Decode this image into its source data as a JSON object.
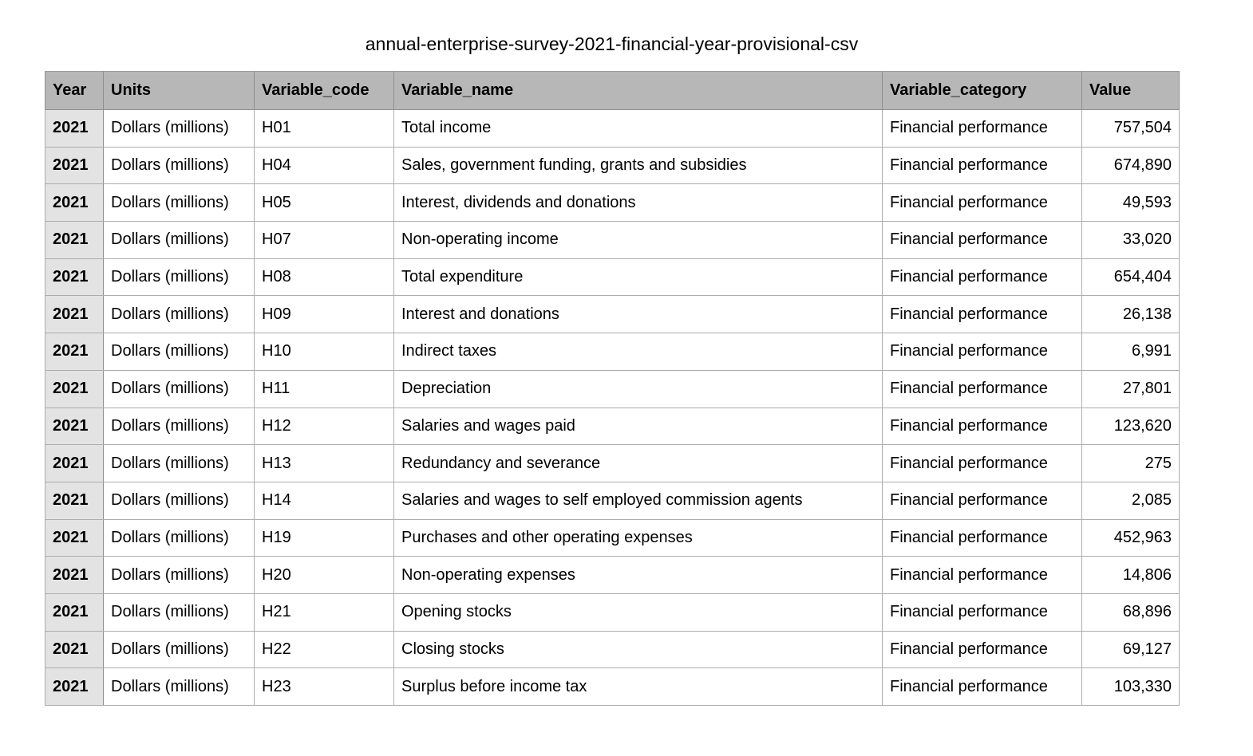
{
  "title": "annual-enterprise-survey-2021-financial-year-provisional-csv",
  "table": {
    "columns": [
      "Year",
      "Units",
      "Variable_code",
      "Variable_name",
      "Variable_category",
      "Value"
    ],
    "rows": [
      [
        "2021",
        "Dollars (millions)",
        "H01",
        "Total income",
        "Financial performance",
        "757,504"
      ],
      [
        "2021",
        "Dollars (millions)",
        "H04",
        "Sales, government funding, grants and subsidies",
        "Financial performance",
        "674,890"
      ],
      [
        "2021",
        "Dollars (millions)",
        "H05",
        "Interest, dividends and donations",
        "Financial performance",
        "49,593"
      ],
      [
        "2021",
        "Dollars (millions)",
        "H07",
        "Non-operating income",
        "Financial performance",
        "33,020"
      ],
      [
        "2021",
        "Dollars (millions)",
        "H08",
        "Total expenditure",
        "Financial performance",
        "654,404"
      ],
      [
        "2021",
        "Dollars (millions)",
        "H09",
        "Interest and donations",
        "Financial performance",
        "26,138"
      ],
      [
        "2021",
        "Dollars (millions)",
        "H10",
        "Indirect taxes",
        "Financial performance",
        "6,991"
      ],
      [
        "2021",
        "Dollars (millions)",
        "H11",
        "Depreciation",
        "Financial performance",
        "27,801"
      ],
      [
        "2021",
        "Dollars (millions)",
        "H12",
        "Salaries and wages paid",
        "Financial performance",
        "123,620"
      ],
      [
        "2021",
        "Dollars (millions)",
        "H13",
        "Redundancy and severance",
        "Financial performance",
        "275"
      ],
      [
        "2021",
        "Dollars (millions)",
        "H14",
        "Salaries and wages to self employed commission agents",
        "Financial performance",
        "2,085"
      ],
      [
        "2021",
        "Dollars (millions)",
        "H19",
        "Purchases and other operating expenses",
        "Financial performance",
        "452,963"
      ],
      [
        "2021",
        "Dollars (millions)",
        "H20",
        "Non-operating expenses",
        "Financial performance",
        "14,806"
      ],
      [
        "2021",
        "Dollars (millions)",
        "H21",
        "Opening stocks",
        "Financial performance",
        "68,896"
      ],
      [
        "2021",
        "Dollars (millions)",
        "H22",
        "Closing stocks",
        "Financial performance",
        "69,127"
      ],
      [
        "2021",
        "Dollars (millions)",
        "H23",
        "Surplus before income tax",
        "Financial performance",
        "103,330"
      ]
    ]
  },
  "colors": {
    "header_bg": "#b7b7b7",
    "year_col_bg": "#e3e3e3",
    "border": "#adadad",
    "header_border": "#8f8f8f",
    "outer_border": "#9b9b9b",
    "text": "#000000",
    "page_bg": "#ffffff"
  }
}
